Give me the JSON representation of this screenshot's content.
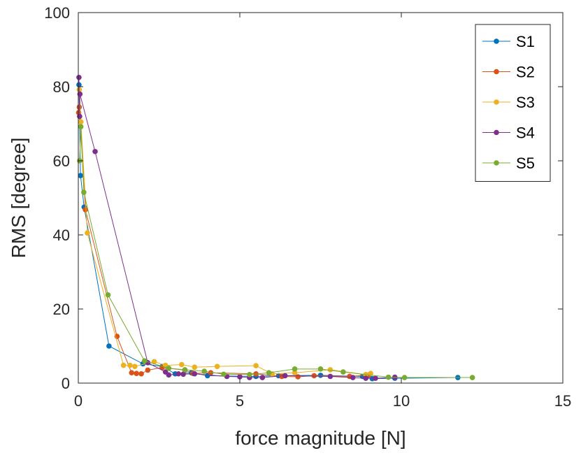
{
  "chart_data": {
    "type": "line",
    "title": "",
    "xlabel": "force magnitude [N]",
    "ylabel": "RMS [degree]",
    "xlim": [
      0,
      15
    ],
    "ylim": [
      0,
      100
    ],
    "xticks": [
      "0",
      "5",
      "10",
      "15"
    ],
    "yticks": [
      "0",
      "20",
      "40",
      "60",
      "80",
      "100"
    ],
    "grid": false,
    "legend_position": "top-right",
    "series": [
      {
        "name": "S1",
        "color": "#0072BD",
        "points": [
          [
            0.02,
            80.5
          ],
          [
            0.07,
            56.0
          ],
          [
            0.18,
            47.5
          ],
          [
            0.95,
            10.0
          ],
          [
            2.0,
            5.2
          ],
          [
            2.6,
            4.5
          ],
          [
            3.0,
            2.5
          ],
          [
            3.5,
            2.8
          ],
          [
            4.0,
            2.0
          ],
          [
            5.5,
            1.8
          ],
          [
            6.2,
            2.0
          ],
          [
            7.5,
            2.1
          ],
          [
            8.8,
            1.8
          ],
          [
            9.1,
            1.2
          ],
          [
            9.8,
            1.3
          ],
          [
            11.75,
            1.5
          ]
        ]
      },
      {
        "name": "S2",
        "color": "#D95319",
        "points": [
          [
            0.01,
            73.0
          ],
          [
            0.03,
            74.5
          ],
          [
            0.22,
            46.8
          ],
          [
            1.2,
            12.6
          ],
          [
            1.65,
            2.8
          ],
          [
            1.8,
            2.6
          ],
          [
            1.95,
            2.5
          ],
          [
            2.15,
            3.5
          ],
          [
            2.6,
            4.2
          ],
          [
            3.3,
            3.5
          ],
          [
            3.55,
            2.6
          ],
          [
            4.1,
            2.8
          ],
          [
            5.5,
            2.5
          ],
          [
            6.3,
            1.8
          ],
          [
            6.8,
            1.7
          ],
          [
            7.3,
            2.0
          ],
          [
            8.4,
            1.8
          ],
          [
            9.0,
            2.2
          ]
        ]
      },
      {
        "name": "S3",
        "color": "#EDB120",
        "points": [
          [
            0.03,
            79.2
          ],
          [
            0.08,
            70.5
          ],
          [
            0.28,
            40.5
          ],
          [
            1.4,
            4.8
          ],
          [
            1.6,
            4.8
          ],
          [
            1.75,
            4.5
          ],
          [
            2.35,
            5.8
          ],
          [
            2.7,
            4.8
          ],
          [
            3.2,
            5.0
          ],
          [
            3.6,
            4.3
          ],
          [
            4.3,
            4.5
          ],
          [
            5.5,
            4.7
          ],
          [
            6.0,
            2.5
          ],
          [
            6.7,
            2.8
          ],
          [
            7.8,
            3.6
          ],
          [
            8.9,
            2.3
          ],
          [
            9.05,
            2.6
          ]
        ]
      },
      {
        "name": "S4",
        "color": "#7E2F8E",
        "points": [
          [
            0.02,
            82.5
          ],
          [
            0.04,
            72.0
          ],
          [
            0.05,
            78.0
          ],
          [
            0.52,
            62.5
          ],
          [
            2.15,
            5.5
          ],
          [
            2.7,
            3.0
          ],
          [
            2.8,
            2.2
          ],
          [
            3.1,
            2.5
          ],
          [
            3.25,
            2.4
          ],
          [
            3.6,
            2.5
          ],
          [
            4.6,
            1.8
          ],
          [
            5.0,
            1.7
          ],
          [
            5.3,
            1.5
          ],
          [
            5.7,
            1.5
          ],
          [
            6.4,
            2.0
          ],
          [
            7.8,
            1.8
          ],
          [
            8.5,
            1.5
          ],
          [
            8.9,
            1.3
          ],
          [
            9.2,
            1.3
          ],
          [
            9.8,
            1.6
          ]
        ]
      },
      {
        "name": "S5",
        "color": "#77AC30",
        "points": [
          [
            0.04,
            60.0
          ],
          [
            0.08,
            69.2
          ],
          [
            0.17,
            51.5
          ],
          [
            0.92,
            23.8
          ],
          [
            2.05,
            6.0
          ],
          [
            2.8,
            4.0
          ],
          [
            3.3,
            3.6
          ],
          [
            3.9,
            3.2
          ],
          [
            4.5,
            2.4
          ],
          [
            5.3,
            2.3
          ],
          [
            5.9,
            2.8
          ],
          [
            6.7,
            3.8
          ],
          [
            7.5,
            3.8
          ],
          [
            8.2,
            3.0
          ],
          [
            9.6,
            1.6
          ],
          [
            10.1,
            1.5
          ],
          [
            12.2,
            1.5
          ]
        ]
      }
    ]
  }
}
